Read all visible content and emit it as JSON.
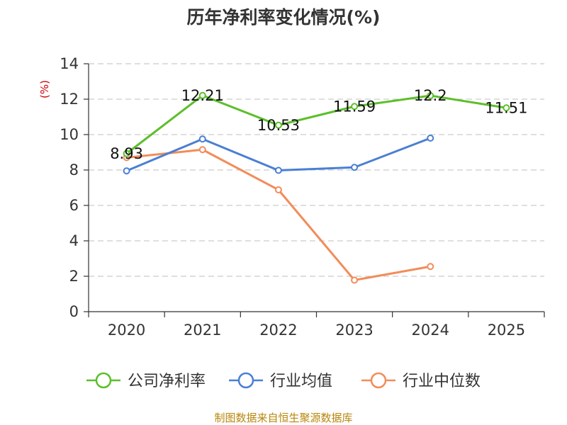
{
  "chart_data": {
    "type": "line",
    "title": "历年净利率变化情况(%)",
    "ylabel": "(%)",
    "xlabel": "",
    "categories": [
      "2020",
      "2021",
      "2022",
      "2023",
      "2024",
      "2025"
    ],
    "ylim": [
      0,
      14
    ],
    "yticks": [
      0,
      2,
      4,
      6,
      8,
      10,
      12,
      14
    ],
    "grid": true,
    "legend_position": "bottom",
    "series": [
      {
        "name": "公司净利率",
        "color": "#5cbf2a",
        "values": [
          8.93,
          12.21,
          10.53,
          11.59,
          12.2,
          11.51
        ],
        "labels": [
          "8.93",
          "12.21",
          "10.53",
          "11.59",
          "12.2",
          "11.51"
        ]
      },
      {
        "name": "行业均值",
        "color": "#4a7fd4",
        "values": [
          7.95,
          9.75,
          7.98,
          8.15,
          9.8,
          null
        ]
      },
      {
        "name": "行业中位数",
        "color": "#f28c5a",
        "values": [
          8.7,
          9.15,
          6.88,
          1.78,
          2.55,
          null
        ]
      }
    ]
  },
  "source": "制图数据来自恒生聚源数据库"
}
